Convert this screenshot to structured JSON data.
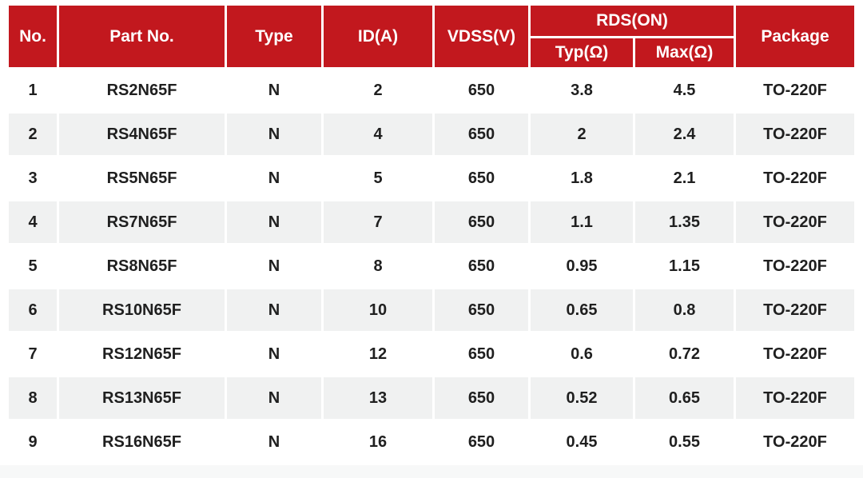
{
  "colors": {
    "header_bg": "#c2181e",
    "header_text": "#ffffff",
    "row_bg": "#ffffff",
    "row_alt_bg": "#f0f1f1",
    "body_text": "#1f1f1f",
    "bottom_strip_bg": "#f7f8f8"
  },
  "table": {
    "headers": {
      "no": "No.",
      "part_no": "Part No.",
      "type": "Type",
      "id_a": "ID(A)",
      "vdss_v": "VDSS(V)",
      "rds_on": "RDS(ON)",
      "typ_ohm": "Typ(Ω)",
      "max_ohm": "Max(Ω)",
      "package": "Package"
    },
    "rows": [
      [
        "1",
        "RS2N65F",
        "N",
        "2",
        "650",
        "3.8",
        "4.5",
        "TO-220F"
      ],
      [
        "2",
        "RS4N65F",
        "N",
        "4",
        "650",
        "2",
        "2.4",
        "TO-220F"
      ],
      [
        "3",
        "RS5N65F",
        "N",
        "5",
        "650",
        "1.8",
        "2.1",
        "TO-220F"
      ],
      [
        "4",
        "RS7N65F",
        "N",
        "7",
        "650",
        "1.1",
        "1.35",
        "TO-220F"
      ],
      [
        "5",
        "RS8N65F",
        "N",
        "8",
        "650",
        "0.95",
        "1.15",
        "TO-220F"
      ],
      [
        "6",
        "RS10N65F",
        "N",
        "10",
        "650",
        "0.65",
        "0.8",
        "TO-220F"
      ],
      [
        "7",
        "RS12N65F",
        "N",
        "12",
        "650",
        "0.6",
        "0.72",
        "TO-220F"
      ],
      [
        "8",
        "RS13N65F",
        "N",
        "13",
        "650",
        "0.52",
        "0.65",
        "TO-220F"
      ],
      [
        "9",
        "RS16N65F",
        "N",
        "16",
        "650",
        "0.45",
        "0.55",
        "TO-220F"
      ]
    ]
  }
}
